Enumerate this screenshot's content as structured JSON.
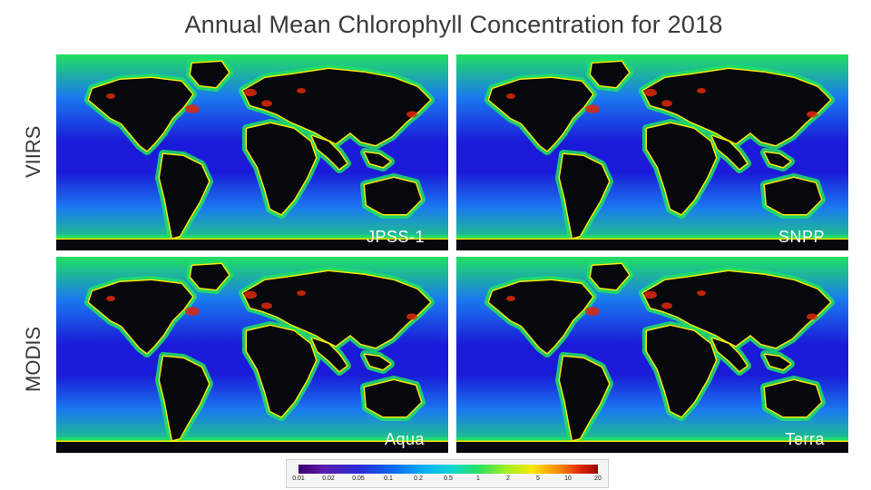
{
  "title": "Annual Mean Chlorophyll Concentration for 2018",
  "row_labels": {
    "top": "VIIRS",
    "bottom": "MODIS"
  },
  "panels": [
    {
      "satellite": "JPSS-1"
    },
    {
      "satellite": "SNPP"
    },
    {
      "satellite": "Aqua"
    },
    {
      "satellite": "Terra"
    }
  ],
  "colorbar": {
    "ticks": [
      "0.01",
      "0.02",
      "0.05",
      "0.1",
      "0.2",
      "0.5",
      "1",
      "2",
      "5",
      "10",
      "20"
    ]
  },
  "colors": {
    "land": "#06080c",
    "ocean_low": "#1a1ad8",
    "ocean_mid": "#1a78f0",
    "ocean_high": "#20e060",
    "coast_extreme": "#e02808"
  }
}
